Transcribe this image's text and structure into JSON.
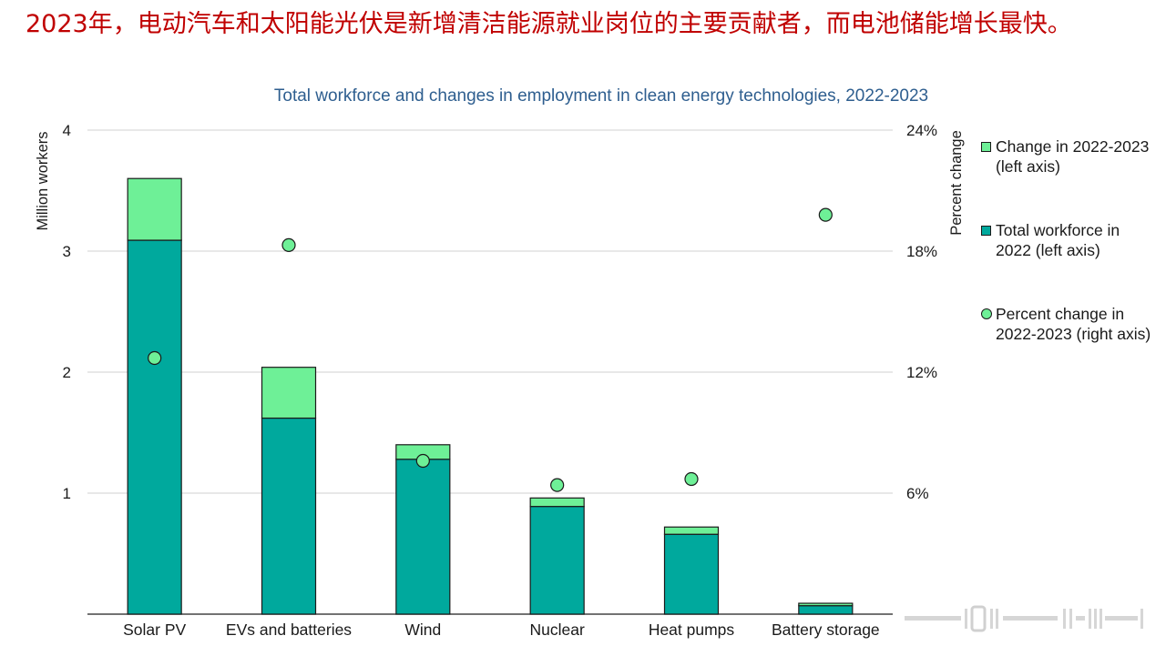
{
  "headline": {
    "text": "2023年，电动汽车和太阳能光伏是新增清洁能源就业岗位的主要贡献者，而电池储能增长最快。",
    "color": "#c00000"
  },
  "colors": {
    "total": "#00a99d",
    "change": "#6ef097",
    "percent_dot": "#6ef097",
    "outline": "#1a1a1a",
    "title": "#2e5e8f",
    "grid": "#d9d9d9"
  },
  "legend": {
    "items": [
      {
        "line1": "Change in 2022-2023",
        "line2": "(left axis)",
        "kind": "square",
        "color": "#6ef097"
      },
      {
        "line1": "Total workforce in",
        "line2": "2022 (left axis)",
        "kind": "square",
        "color": "#00a99d"
      },
      {
        "line1": "Percent change in",
        "line2": "2022-2023 (right axis)",
        "kind": "circle",
        "color": "#6ef097"
      }
    ]
  },
  "chart_data": {
    "type": "bar",
    "stacked": true,
    "title": "Total workforce and changes in employment in clean energy technologies, 2022-2023",
    "ylabel": "Million workers",
    "y2label": "Percent change",
    "categories": [
      "Solar PV",
      "EVs and batteries",
      "Wind",
      "Nuclear",
      "Heat pumps",
      "Battery storage"
    ],
    "series": [
      {
        "name": "Total workforce in 2022 (left axis)",
        "axis": "left",
        "values": [
          3.09,
          1.62,
          1.28,
          0.89,
          0.66,
          0.07
        ]
      },
      {
        "name": "Change in 2022-2023 (left axis)",
        "axis": "left",
        "values": [
          0.51,
          0.42,
          0.12,
          0.07,
          0.06,
          0.02
        ]
      },
      {
        "name": "Percent change in 2022-2023 (right axis)",
        "axis": "right",
        "type": "scatter",
        "values": [
          12.7,
          18.3,
          7.6,
          6.4,
          6.7,
          19.8
        ]
      }
    ],
    "ylim": [
      0,
      4
    ],
    "y2lim": [
      0,
      24
    ],
    "yticks": [
      "1",
      "2",
      "3",
      "4"
    ],
    "y2ticks": [
      "6%",
      "12%",
      "18%",
      "24%"
    ],
    "grid": true,
    "legend_position": "right"
  }
}
